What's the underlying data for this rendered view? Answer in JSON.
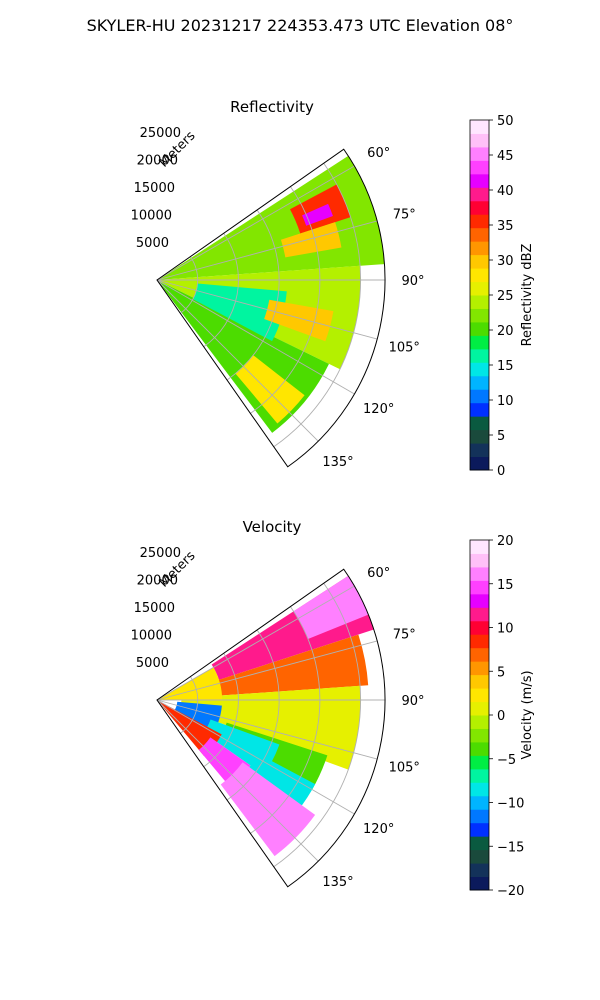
{
  "figure_title": "SKYLER-HU  20231217  224353.473 UTC Elevation 08°",
  "chart_data": [
    {
      "type": "polar-sector-heatmap",
      "title": "Reflectivity",
      "radial_label": "Meters",
      "radial_ticks": [
        5000,
        10000,
        15000,
        20000,
        25000
      ],
      "radial_tick_labels": [
        "5000",
        "10000",
        "15000",
        "20000",
        "25000"
      ],
      "angle_range_deg": [
        55,
        145
      ],
      "angle_ticks": [
        60,
        75,
        90,
        105,
        120,
        135
      ],
      "angle_tick_labels": [
        "60°",
        "75°",
        "90°",
        "105°",
        "120°",
        "135°"
      ],
      "range_max_m": 28000,
      "grid": true,
      "colorbar": {
        "label": "Reflectivity dBZ",
        "min": 0,
        "max": 50,
        "ticks": [
          0,
          5,
          10,
          15,
          20,
          25,
          30,
          35,
          40,
          45,
          50
        ],
        "tick_labels": [
          "0",
          "5",
          "10",
          "15",
          "20",
          "25",
          "30",
          "35",
          "40",
          "45",
          "50"
        ],
        "colors": [
          "#0b1a5c",
          "#13325a",
          "#1a4a3c",
          "#0a5a40",
          "#0030ff",
          "#0078ff",
          "#00b4ff",
          "#00e6e6",
          "#00f5a0",
          "#00ee44",
          "#4cdc00",
          "#82e600",
          "#b4f000",
          "#e6f000",
          "#ffe600",
          "#ffc800",
          "#ff9600",
          "#ff6400",
          "#ff2a00",
          "#ff0033",
          "#ff1a8c",
          "#e600ff",
          "#ff40ff",
          "#ff80ff",
          "#ffc0f8",
          "#ffe6ff"
        ]
      },
      "regions": [
        {
          "az": [
            57,
            86
          ],
          "r": [
            400,
            28000
          ],
          "value": 23
        },
        {
          "az": [
            86,
            116
          ],
          "r": [
            400,
            25000
          ],
          "value": 24
        },
        {
          "az": [
            116,
            143
          ],
          "r": [
            400,
            23500
          ],
          "value": 20
        },
        {
          "az": [
            95,
            118
          ],
          "r": [
            5000,
            16000
          ],
          "value": 16
        },
        {
          "az": [
            62,
            72
          ],
          "r": [
            18500,
            25000
          ],
          "value": 36
        },
        {
          "az": [
            66,
            70
          ],
          "r": [
            19500,
            23000
          ],
          "value": 41
        },
        {
          "az": [
            72,
            80
          ],
          "r": [
            16000,
            23000
          ],
          "value": 30
        },
        {
          "az": [
            100,
            110
          ],
          "r": [
            14000,
            22000
          ],
          "value": 29
        },
        {
          "az": [
            128,
            140
          ],
          "r": [
            15000,
            23000
          ],
          "value": 28
        }
      ]
    },
    {
      "type": "polar-sector-heatmap",
      "title": "Velocity",
      "radial_label": "Meters",
      "radial_ticks": [
        5000,
        10000,
        15000,
        20000,
        25000
      ],
      "radial_tick_labels": [
        "5000",
        "10000",
        "15000",
        "20000",
        "25000"
      ],
      "angle_range_deg": [
        55,
        145
      ],
      "angle_ticks": [
        60,
        75,
        90,
        105,
        120,
        135
      ],
      "angle_tick_labels": [
        "60°",
        "75°",
        "90°",
        "105°",
        "120°",
        "135°"
      ],
      "range_max_m": 28000,
      "grid": true,
      "colorbar": {
        "label": "Velocity (m/s)",
        "min": -20,
        "max": 20,
        "ticks": [
          -20,
          -15,
          -10,
          -5,
          0,
          5,
          10,
          15,
          20
        ],
        "tick_labels": [
          "−20",
          "−15",
          "−10",
          "−5",
          "0",
          "5",
          "10",
          "15",
          "20"
        ],
        "colors": [
          "#0b1a5c",
          "#13325a",
          "#1a4a3c",
          "#0a5a40",
          "#0030ff",
          "#0078ff",
          "#00b4ff",
          "#00e6e6",
          "#00f5a0",
          "#00ee44",
          "#4cdc00",
          "#82e600",
          "#b4f000",
          "#e6f000",
          "#ffe600",
          "#ffc800",
          "#ff9600",
          "#ff6400",
          "#ff2a00",
          "#ff0033",
          "#ff1a8c",
          "#e600ff",
          "#ff40ff",
          "#ff80ff",
          "#ffc0f8",
          "#ffe6ff"
        ]
      },
      "regions": [
        {
          "az": [
            57,
            72
          ],
          "r": [
            8000,
            28000
          ],
          "value": 12
        },
        {
          "az": [
            57,
            68
          ],
          "r": [
            20000,
            28000
          ],
          "value": 16
        },
        {
          "az": [
            72,
            86
          ],
          "r": [
            5000,
            26000
          ],
          "value": 7
        },
        {
          "az": [
            86,
            110
          ],
          "r": [
            3000,
            25000
          ],
          "value": 1
        },
        {
          "az": [
            60,
            90
          ],
          "r": [
            400,
            8000
          ],
          "value": 2
        },
        {
          "az": [
            108,
            120
          ],
          "r": [
            9000,
            22000
          ],
          "value": -4
        },
        {
          "az": [
            95,
            125
          ],
          "r": [
            2500,
            8000
          ],
          "value": -11
        },
        {
          "az": [
            110,
            125
          ],
          "r": [
            7000,
            16000
          ],
          "value": -9
        },
        {
          "az": [
            118,
            128
          ],
          "r": [
            14000,
            22000
          ],
          "value": -8
        },
        {
          "az": [
            118,
            140
          ],
          "r": [
            400,
            9000
          ],
          "value": 8
        },
        {
          "az": [
            125,
            140
          ],
          "r": [
            8000,
            14000
          ],
          "value": 14
        },
        {
          "az": [
            126,
            143
          ],
          "r": [
            13000,
            24000
          ],
          "value": 16
        }
      ]
    }
  ]
}
